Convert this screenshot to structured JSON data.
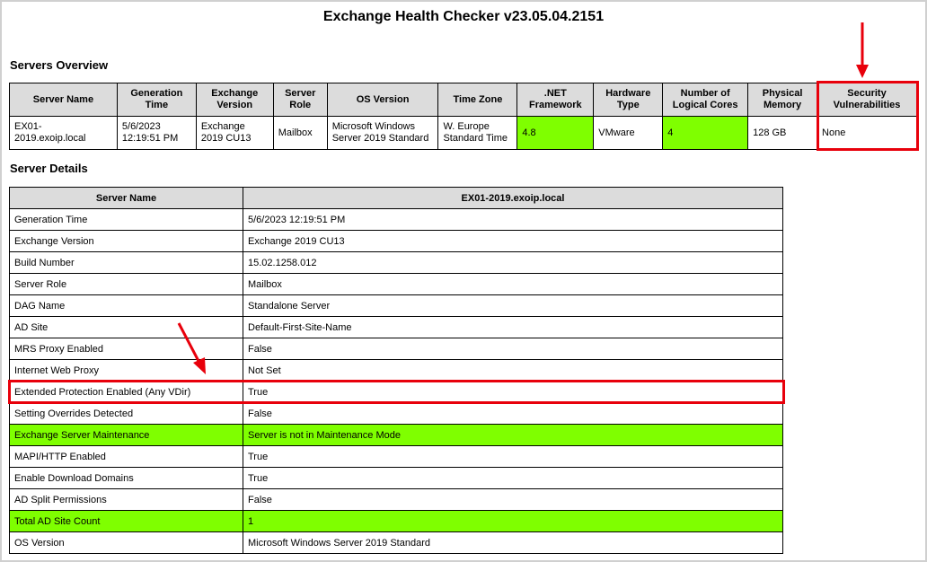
{
  "title": "Exchange Health Checker v23.05.04.2151",
  "overview": {
    "heading": "Servers Overview",
    "headers": [
      "Server Name",
      "Generation Time",
      "Exchange Version",
      "Server Role",
      "OS Version",
      "Time Zone",
      ".NET Framework",
      "Hardware Type",
      "Number of Logical Cores",
      "Physical Memory",
      "Security Vulnerabilities"
    ],
    "row": [
      "EX01-2019.exoip.local",
      "5/6/2023 12:19:51 PM",
      "Exchange 2019 CU13",
      "Mailbox",
      "Microsoft Windows Server 2019 Standard",
      "W. Europe Standard Time",
      "4.8",
      "VMware",
      "4",
      "128 GB",
      "None"
    ]
  },
  "details": {
    "heading": "Server Details",
    "headers": [
      "Server Name",
      "EX01-2019.exoip.local"
    ],
    "rows": [
      {
        "label": "Generation Time",
        "value": "5/6/2023 12:19:51 PM"
      },
      {
        "label": "Exchange Version",
        "value": "Exchange 2019 CU13"
      },
      {
        "label": "Build Number",
        "value": "15.02.1258.012"
      },
      {
        "label": "Server Role",
        "value": "Mailbox"
      },
      {
        "label": "DAG Name",
        "value": "Standalone Server"
      },
      {
        "label": "AD Site",
        "value": "Default-First-Site-Name"
      },
      {
        "label": "MRS Proxy Enabled",
        "value": "False"
      },
      {
        "label": "Internet Web Proxy",
        "value": "Not Set"
      },
      {
        "label": "Extended Protection Enabled (Any VDir)",
        "value": "True"
      },
      {
        "label": "Setting Overrides Detected",
        "value": "False"
      },
      {
        "label": "Exchange Server Maintenance",
        "value": "Server is not in Maintenance Mode",
        "highlight": true
      },
      {
        "label": "MAPI/HTTP Enabled",
        "value": "True"
      },
      {
        "label": "Enable Download Domains",
        "value": "True"
      },
      {
        "label": "AD Split Permissions",
        "value": "False"
      },
      {
        "label": "Total AD Site Count",
        "value": "1",
        "highlight": true
      },
      {
        "label": "OS Version",
        "value": "Microsoft Windows Server 2019 Standard"
      }
    ]
  },
  "colors": {
    "good": "#7fff00",
    "annotation": "#e8000b",
    "header": "#dcdcdc"
  }
}
